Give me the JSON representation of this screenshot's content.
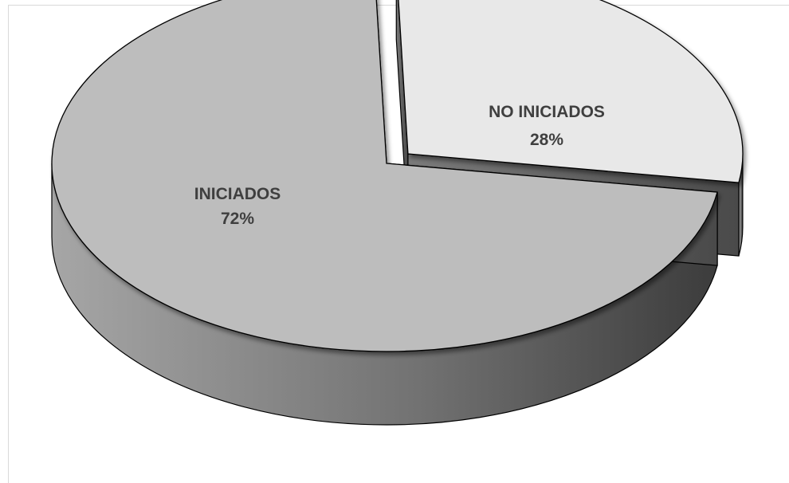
{
  "chart_data": {
    "type": "pie",
    "style": "3d-exploded",
    "title": "",
    "slices": [
      {
        "label": "INICIADOS",
        "value": 72,
        "display": "72%",
        "color": "#bdbdbd",
        "exploded": false
      },
      {
        "label": "NO INICIADOS",
        "value": 28,
        "display": "28%",
        "color": "#e8e8e8",
        "exploded": true
      }
    ],
    "legend": "none",
    "data_labels": "inside"
  }
}
